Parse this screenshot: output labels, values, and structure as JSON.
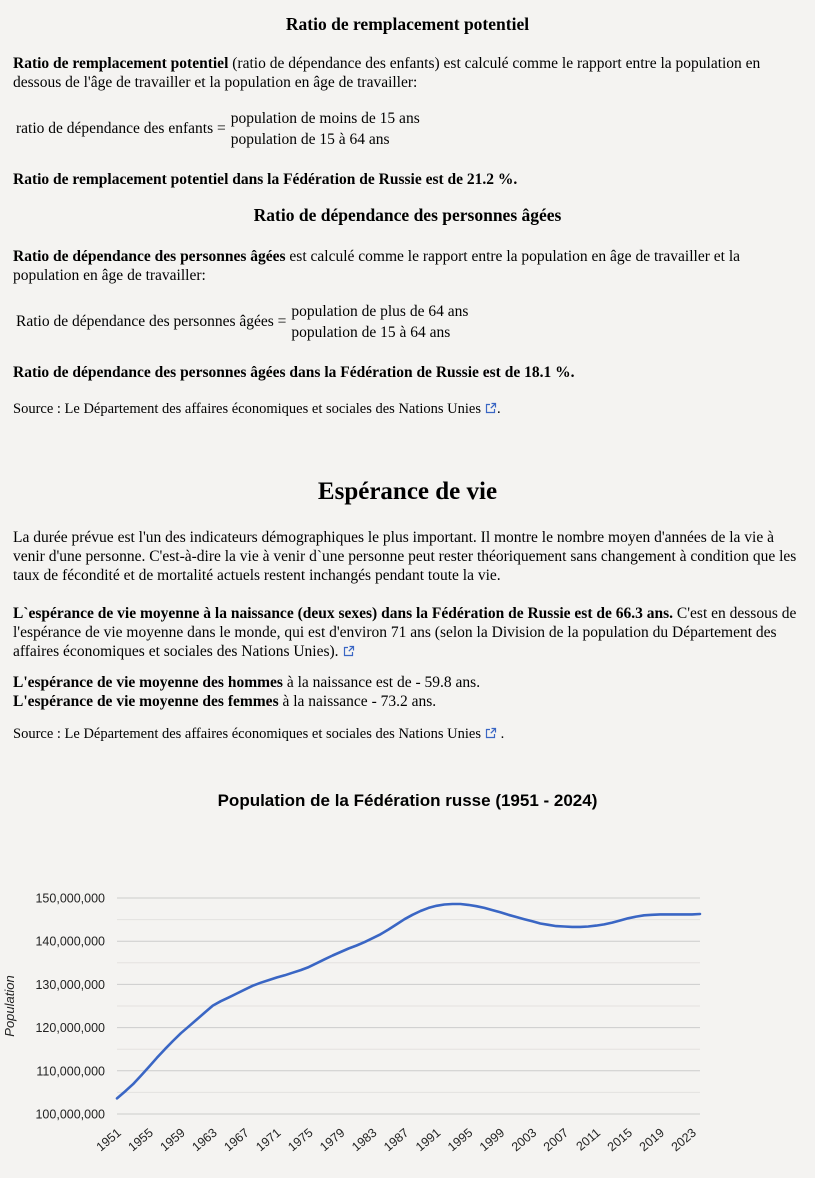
{
  "colors": {
    "page_background": "#f4f3f1",
    "link_icon": "#3a66c4",
    "line": "#3a66c4",
    "grid_major": "#cccccc",
    "grid_minor": "#e3e2e0",
    "tick_text": "#222222"
  },
  "replacement_section": {
    "title": "Ratio de remplacement potentiel",
    "para_bold": "Ratio de remplacement potentiel",
    "para_rest": " (ratio de dépendance des enfants) est calculé comme le rapport entre la population en dessous de l'âge de travailler et la population en âge de travailler:",
    "formula_label": "ratio de dépendance des enfants =",
    "formula_numerator": "population de moins de 15 ans",
    "formula_denominator": "population de 15 à 64 ans",
    "result": "Ratio de remplacement potentiel dans la Fédération de Russie est de 21.2 %."
  },
  "elderly_section": {
    "title": "Ratio de dépendance des personnes âgées",
    "para_bold": "Ratio de dépendance des personnes âgées",
    "para_rest": " est calculé comme le rapport entre la population en âge de travailler et la population en âge de travailler:",
    "formula_label": "Ratio de dépendance des personnes âgées =",
    "formula_numerator": "population de plus de 64 ans",
    "formula_denominator": "population de 15 à 64 ans",
    "result": "Ratio de dépendance des personnes âgées dans la Fédération de Russie est de 18.1 %."
  },
  "source1": {
    "prefix": "Source : ",
    "link_text": "Le Département des affaires économiques et sociales des Nations Unies",
    "suffix": "."
  },
  "source2": {
    "prefix": "Source : ",
    "link_text": "Le Département des affaires économiques et sociales des Nations Unies",
    "suffix": " ."
  },
  "life_section": {
    "title": "Espérance de vie",
    "para1": "La durée prévue est l'un des indicateurs démographiques le plus important. Il montre le nombre moyen d'années de la vie à venir d'une personne. C'est-à-dire la vie à venir d`une personne peut rester théoriquement sans changement à condition que les taux de fécondité et de mortalité actuels restent inchangés pendant toute la vie.",
    "para2_bold": "L`espérance de vie moyenne à la naissance (deux sexes) dans la Fédération de Russie est de 66.3 ans.",
    "para2_rest": " C'est en dessous de l'espérance de vie moyenne dans le monde, qui est d'environ 71 ans (selon la Division de la population du Département des affaires économiques et sociales des Nations Unies).",
    "men_bold": "L'espérance de vie moyenne des hommes",
    "men_rest": " à la naissance est de - 59.8 ans.",
    "women_bold": "L'espérance de vie moyenne des femmes",
    "women_rest": " à la naissance - 73.2 ans."
  },
  "chart_data": {
    "type": "line",
    "title": "Population de la Fédération russe (1951 - 2024)",
    "xlabel": "",
    "ylabel": "Population",
    "legend": "none",
    "grid": "horizontal, minor gridlines every 5,000,000",
    "x_range": [
      1951,
      2024
    ],
    "ylim": [
      100000000,
      150000000
    ],
    "y_tick_step": 10000000,
    "y_minor_step": 5000000,
    "x_ticks": [
      1951,
      1955,
      1959,
      1963,
      1967,
      1971,
      1975,
      1979,
      1983,
      1987,
      1991,
      1995,
      1999,
      2003,
      2007,
      2011,
      2015,
      2019,
      2023
    ],
    "series": [
      {
        "name": "Population",
        "color": "#3a66c4",
        "x_start": 1951,
        "x_step": 1,
        "values": [
          103600000,
          105200000,
          106900000,
          108900000,
          110900000,
          113000000,
          115000000,
          116900000,
          118700000,
          120300000,
          121900000,
          123500000,
          125100000,
          126100000,
          127000000,
          127900000,
          128800000,
          129700000,
          130400000,
          131000000,
          131600000,
          132100000,
          132700000,
          133300000,
          134000000,
          134900000,
          135800000,
          136700000,
          137500000,
          138300000,
          139000000,
          139800000,
          140700000,
          141600000,
          142700000,
          143900000,
          145100000,
          146100000,
          147000000,
          147700000,
          148200000,
          148500000,
          148600000,
          148600000,
          148400000,
          148100000,
          147700000,
          147200000,
          146700000,
          146100000,
          145600000,
          145100000,
          144600000,
          144100000,
          143800000,
          143500000,
          143400000,
          143300000,
          143300000,
          143400000,
          143600000,
          143900000,
          144300000,
          144800000,
          145300000,
          145700000,
          146000000,
          146100000,
          146200000,
          146200000,
          146200000,
          146200000,
          146200000,
          146300000
        ]
      }
    ]
  }
}
